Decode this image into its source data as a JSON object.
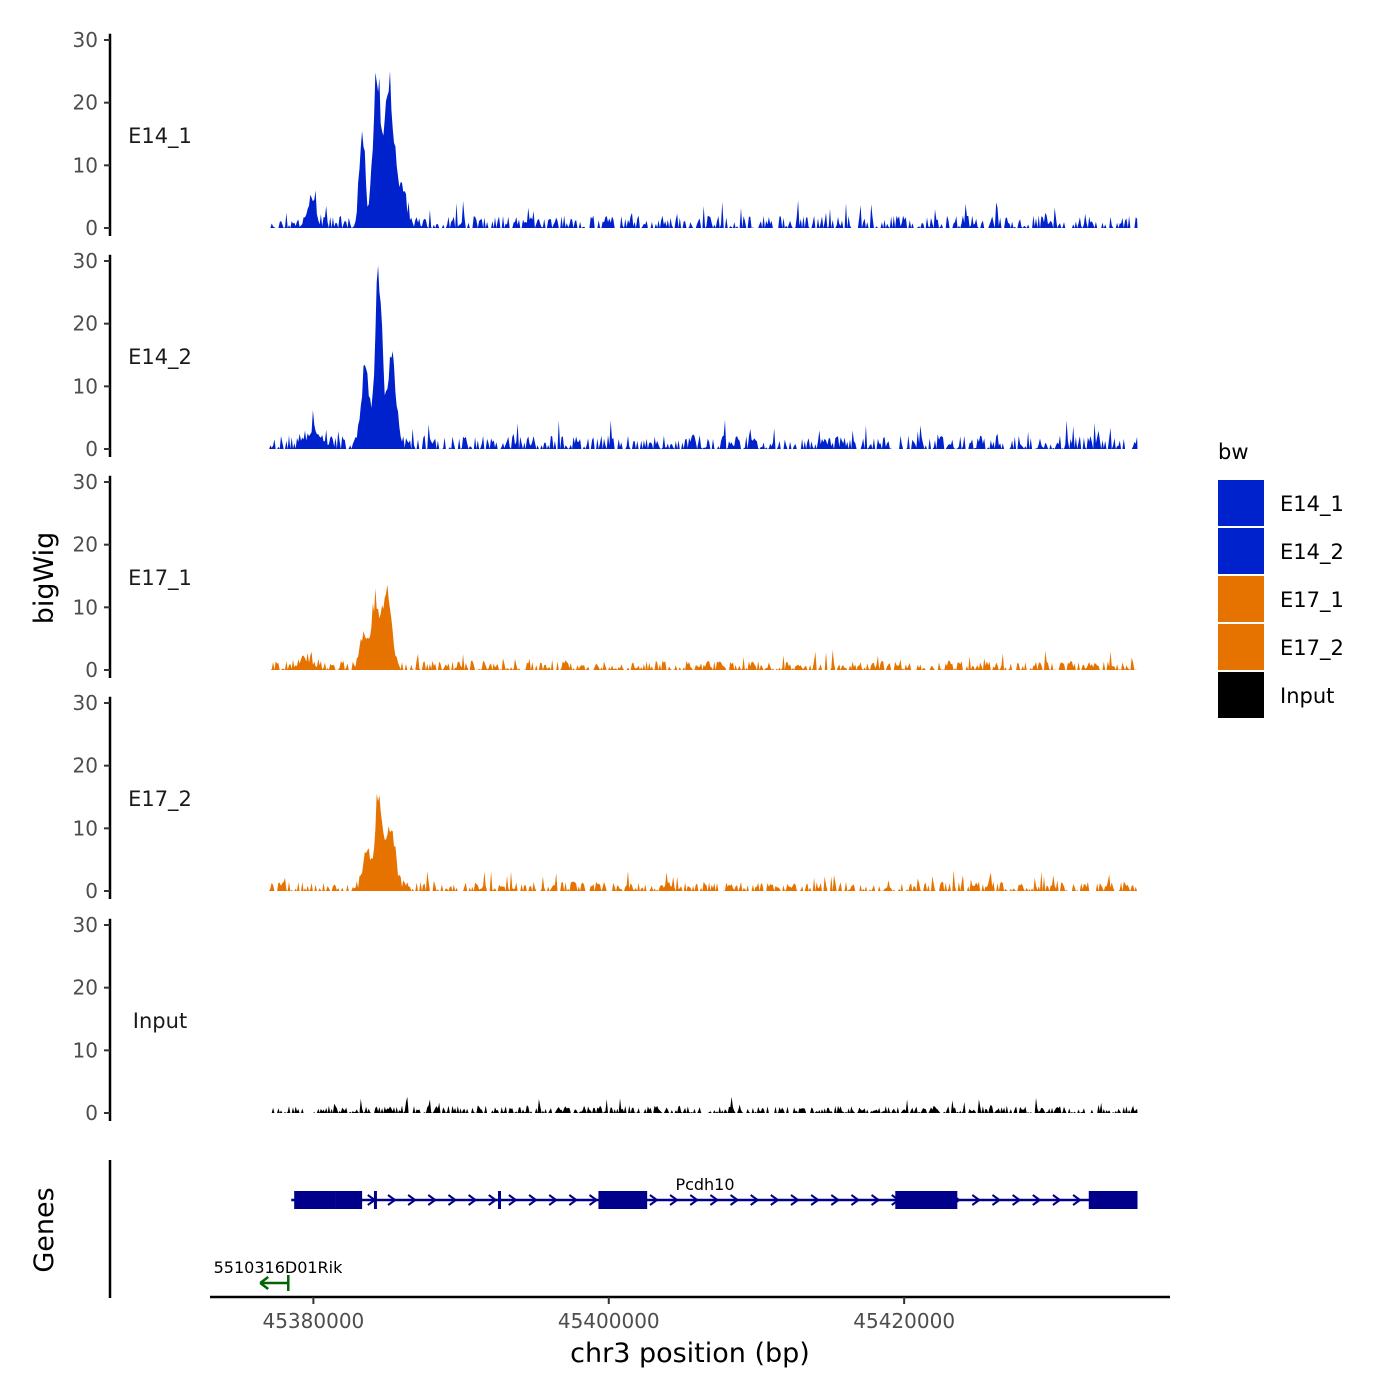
{
  "chart_data": {
    "type": "area",
    "title": "",
    "xlabel": "chr3 position (bp)",
    "ylabel": "bigWig",
    "genes_label": "Genes",
    "xlim": [
      45373000,
      45438000
    ],
    "ylim": [
      0,
      30
    ],
    "x_ticks": [
      45380000,
      45400000,
      45420000
    ],
    "x_tick_labels": [
      "45380000",
      "45400000",
      "45420000"
    ],
    "y_ticks": [
      0,
      10,
      20,
      30
    ],
    "y_tick_labels": [
      "0",
      "10",
      "20",
      "30"
    ],
    "data_range": [
      45377000,
      45435800
    ],
    "colors": {
      "E14": "#0022cc",
      "E17": "#e67300",
      "Input": "#000000",
      "gene_main": "#00008b",
      "gene_other": "#006400"
    },
    "tracks": [
      {
        "name": "E14_1",
        "label": "E14_1",
        "color": "#0022cc",
        "noise": 2.0,
        "seed": 11,
        "peaks": [
          {
            "x": 45384300,
            "h": 26,
            "w": 250
          },
          {
            "x": 45385100,
            "h": 24,
            "w": 280
          },
          {
            "x": 45383300,
            "h": 15,
            "w": 200
          },
          {
            "x": 45385900,
            "h": 7,
            "w": 350
          },
          {
            "x": 45379800,
            "h": 4,
            "w": 300
          }
        ]
      },
      {
        "name": "E14_2",
        "label": "E14_2",
        "color": "#0022cc",
        "noise": 2.2,
        "seed": 23,
        "peaks": [
          {
            "x": 45384400,
            "h": 29.5,
            "w": 230
          },
          {
            "x": 45385300,
            "h": 16,
            "w": 300
          },
          {
            "x": 45383500,
            "h": 14,
            "w": 260
          },
          {
            "x": 45380100,
            "h": 3,
            "w": 500
          }
        ]
      },
      {
        "name": "E17_1",
        "label": "E17_1",
        "color": "#e67300",
        "noise": 1.5,
        "seed": 37,
        "peaks": [
          {
            "x": 45385000,
            "h": 13.5,
            "w": 300
          },
          {
            "x": 45384200,
            "h": 12,
            "w": 250
          },
          {
            "x": 45383400,
            "h": 6,
            "w": 250
          },
          {
            "x": 45379500,
            "h": 1.5,
            "w": 500
          }
        ]
      },
      {
        "name": "E17_2",
        "label": "E17_2",
        "color": "#e67300",
        "noise": 1.5,
        "seed": 41,
        "peaks": [
          {
            "x": 45384400,
            "h": 14,
            "w": 250
          },
          {
            "x": 45385200,
            "h": 11,
            "w": 320
          },
          {
            "x": 45383600,
            "h": 7,
            "w": 250
          }
        ]
      },
      {
        "name": "Input",
        "label": "Input",
        "color": "#000000",
        "noise": 1.2,
        "seed": 53,
        "peaks": []
      }
    ],
    "legend": {
      "title": "bw",
      "items": [
        {
          "label": "E14_1",
          "color": "#0022cc"
        },
        {
          "label": "E14_2",
          "color": "#0022cc"
        },
        {
          "label": "E17_1",
          "color": "#e67300"
        },
        {
          "label": "E17_2",
          "color": "#e67300"
        },
        {
          "label": "Input",
          "color": "#000000"
        }
      ]
    },
    "genes": [
      {
        "name": "Pcdh10",
        "start": 45378500,
        "end": 45435800,
        "strand": "+",
        "row": 1,
        "color": "#00008b",
        "exons": [
          [
            45378700,
            45381500
          ],
          [
            45381500,
            45383300
          ],
          [
            45384100,
            45384300
          ],
          [
            45392500,
            45392700
          ],
          [
            45399300,
            45402600
          ],
          [
            45419400,
            45423600
          ],
          [
            45432500,
            45435800
          ]
        ]
      },
      {
        "name": "5510316D01Rik",
        "start": 45376400,
        "end": 45378300,
        "strand": "-",
        "row": 2,
        "color": "#006400",
        "exons": []
      }
    ]
  }
}
